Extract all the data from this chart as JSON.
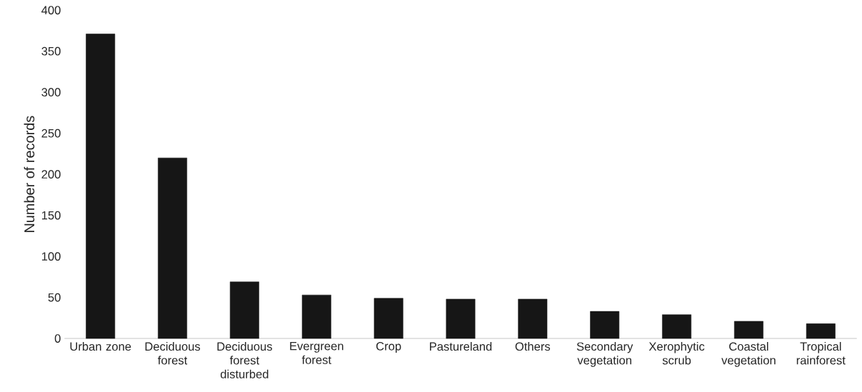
{
  "chart_data": {
    "type": "bar",
    "ylabel": "Number of records",
    "categories": [
      "Urban zone",
      "Deciduous forest",
      "Deciduous forest disturbed",
      "Evergreen forest",
      "Crop",
      "Pastureland",
      "Others",
      "Secondary vegetation",
      "Xerophytic scrub",
      "Coastal vegetation",
      "Tropical rainforest"
    ],
    "values": [
      371,
      220,
      69,
      53,
      49,
      48,
      48,
      33,
      29,
      21,
      18
    ],
    "color": "#161616",
    "ylim": [
      0,
      400
    ],
    "yticks": [
      0,
      50,
      100,
      150,
      200,
      250,
      300,
      350,
      400
    ]
  }
}
